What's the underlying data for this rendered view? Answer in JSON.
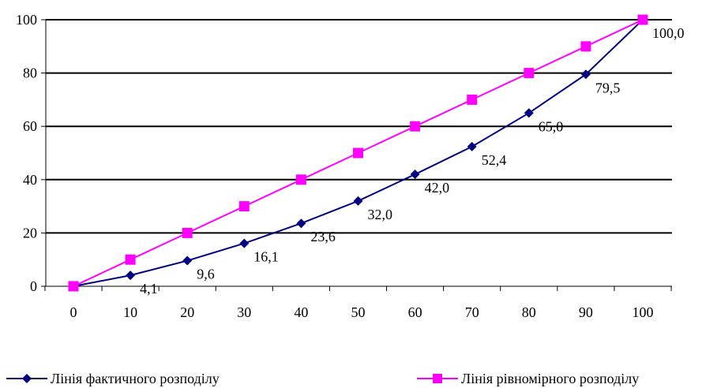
{
  "chart_data": {
    "type": "line",
    "x": [
      0,
      10,
      20,
      30,
      40,
      50,
      60,
      70,
      80,
      90,
      100
    ],
    "series": [
      {
        "name": "Лінія фактичного розподілу",
        "values": [
          0,
          4.1,
          9.6,
          16.1,
          23.6,
          32.0,
          42.0,
          52.4,
          65.0,
          79.5,
          100.0
        ],
        "labels": [
          "",
          "4,1",
          "9,6",
          "16,1",
          "23,6",
          "32,0",
          "42,0",
          "52,4",
          "65,0",
          "79,5",
          "100,0"
        ],
        "color": "#000080",
        "marker": "diamond"
      },
      {
        "name": "Лінія рівномірного розподілу",
        "values": [
          0,
          10,
          20,
          30,
          40,
          50,
          60,
          70,
          80,
          90,
          100
        ],
        "color": "#ff00ff",
        "marker": "square"
      }
    ],
    "x_tick_labels": [
      "0",
      "10",
      "20",
      "30",
      "40",
      "50",
      "60",
      "70",
      "80",
      "90",
      "100"
    ],
    "y_tick_labels": [
      "0",
      "20",
      "40",
      "60",
      "80",
      "100"
    ],
    "xlim": [
      0,
      100
    ],
    "ylim": [
      0,
      100
    ],
    "grid": "horizontal",
    "legend_position": "bottom"
  },
  "legend": {
    "actual_label": "Лінія фактичного розподілу",
    "uniform_label": "Лінія рівномірного розподілу"
  }
}
